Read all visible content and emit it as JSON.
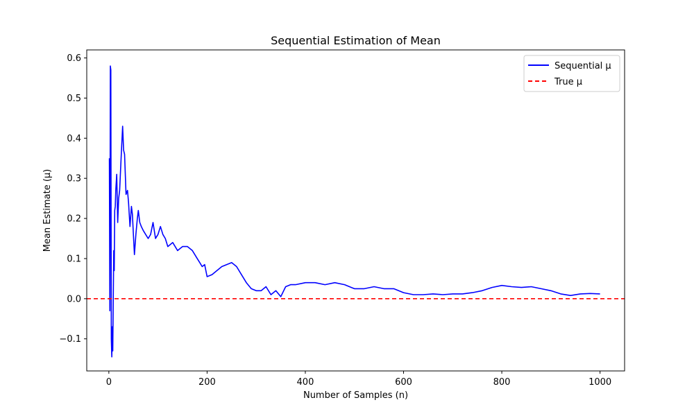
{
  "chart_data": {
    "type": "line",
    "title": "Sequential Estimation of Mean",
    "xlabel": "Number of Samples (n)",
    "ylabel": "Mean Estimate (μ)",
    "xlim": [
      -45,
      1050
    ],
    "ylim": [
      -0.18,
      0.62
    ],
    "xticks": [
      0,
      200,
      400,
      600,
      800,
      1000
    ],
    "yticks": [
      -0.1,
      0.0,
      0.1,
      0.2,
      0.3,
      0.4,
      0.5,
      0.6
    ],
    "xtick_labels": [
      "0",
      "200",
      "400",
      "600",
      "800",
      "1000"
    ],
    "ytick_labels": [
      "−0.1",
      "0.0",
      "0.1",
      "0.2",
      "0.3",
      "0.4",
      "0.5",
      "0.6"
    ],
    "grid": false,
    "legend_position": "top-right",
    "series": [
      {
        "name": "Sequential μ",
        "color": "#0000ff",
        "style": "solid",
        "x": [
          1,
          2,
          3,
          4,
          5,
          6,
          7,
          8,
          9,
          10,
          11,
          12,
          13,
          14,
          16,
          18,
          20,
          22,
          25,
          28,
          30,
          32,
          35,
          38,
          40,
          43,
          46,
          48,
          50,
          52,
          55,
          58,
          60,
          63,
          66,
          70,
          75,
          80,
          85,
          90,
          95,
          100,
          105,
          110,
          115,
          120,
          130,
          140,
          150,
          160,
          170,
          180,
          185,
          190,
          195,
          200,
          210,
          220,
          230,
          240,
          250,
          260,
          270,
          280,
          290,
          300,
          310,
          320,
          330,
          340,
          350,
          360,
          370,
          380,
          400,
          420,
          440,
          460,
          480,
          500,
          520,
          540,
          560,
          580,
          600,
          620,
          640,
          660,
          680,
          700,
          720,
          740,
          760,
          780,
          800,
          820,
          840,
          860,
          880,
          900,
          920,
          940,
          960,
          980,
          1000
        ],
        "values": [
          0.35,
          -0.03,
          0.58,
          0.57,
          -0.1,
          -0.145,
          -0.07,
          -0.13,
          0.0,
          0.12,
          0.07,
          0.22,
          0.23,
          0.27,
          0.31,
          0.19,
          0.25,
          0.27,
          0.35,
          0.43,
          0.37,
          0.36,
          0.26,
          0.27,
          0.24,
          0.18,
          0.23,
          0.21,
          0.16,
          0.11,
          0.16,
          0.2,
          0.22,
          0.19,
          0.18,
          0.17,
          0.16,
          0.15,
          0.16,
          0.19,
          0.15,
          0.16,
          0.18,
          0.16,
          0.15,
          0.13,
          0.14,
          0.12,
          0.13,
          0.13,
          0.12,
          0.1,
          0.09,
          0.08,
          0.085,
          0.055,
          0.06,
          0.07,
          0.08,
          0.085,
          0.09,
          0.08,
          0.06,
          0.04,
          0.025,
          0.02,
          0.02,
          0.03,
          0.01,
          0.02,
          0.005,
          0.03,
          0.035,
          0.035,
          0.04,
          0.04,
          0.035,
          0.04,
          0.035,
          0.025,
          0.025,
          0.03,
          0.025,
          0.025,
          0.015,
          0.01,
          0.01,
          0.012,
          0.01,
          0.012,
          0.012,
          0.015,
          0.02,
          0.028,
          0.033,
          0.03,
          0.028,
          0.03,
          0.025,
          0.02,
          0.012,
          0.008,
          0.012,
          0.013,
          0.012
        ]
      },
      {
        "name": "True μ",
        "color": "#ff0000",
        "style": "dashed",
        "constant": 0.0
      }
    ]
  }
}
